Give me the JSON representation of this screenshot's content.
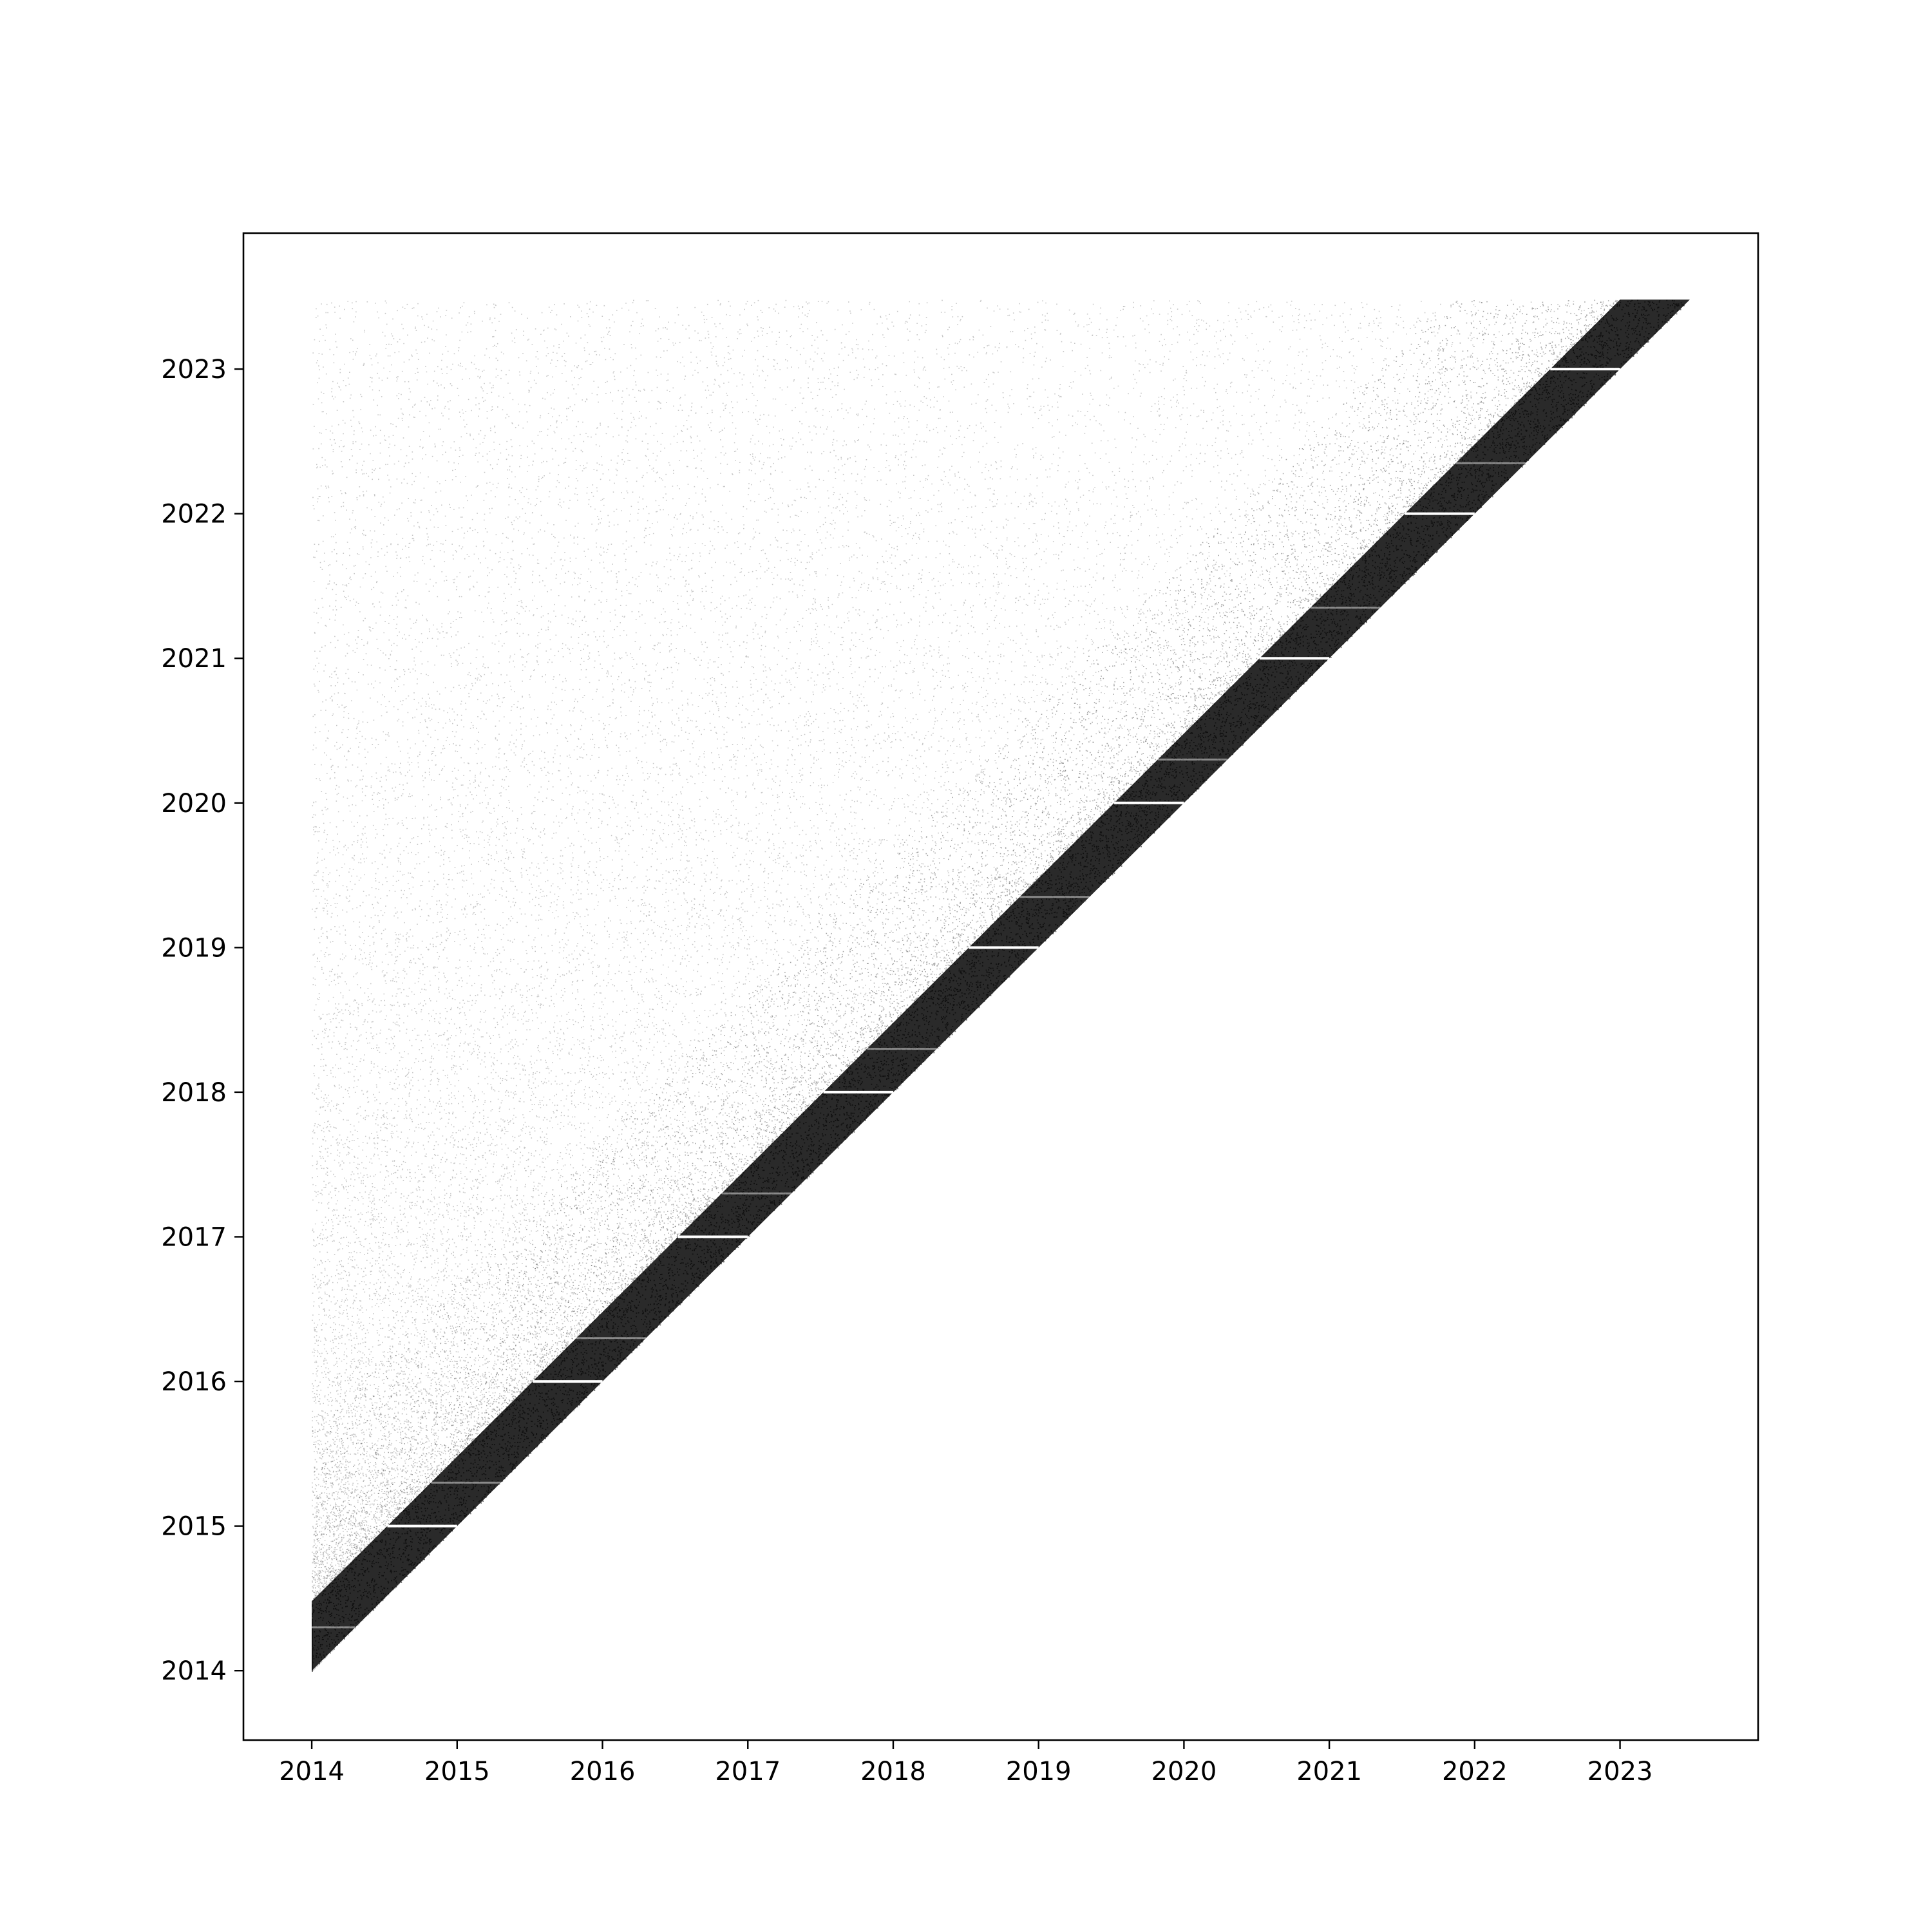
{
  "chart_data": {
    "type": "scatter",
    "title": "",
    "xlabel": "",
    "ylabel": "",
    "x_axis": {
      "scale": "time (year)",
      "range": [
        2013.53,
        2023.95
      ],
      "ticks": [
        "2014",
        "2015",
        "2016",
        "2017",
        "2018",
        "2019",
        "2020",
        "2021",
        "2022",
        "2023"
      ]
    },
    "y_axis": {
      "scale": "time (year)",
      "range": [
        2013.52,
        2023.94
      ],
      "ticks": [
        "2014",
        "2015",
        "2016",
        "2017",
        "2018",
        "2019",
        "2020",
        "2021",
        "2022",
        "2023"
      ]
    },
    "grid": false,
    "legend": "none",
    "point_color": "#000000",
    "description_of_density": {
      "data_start": 2014.0,
      "data_end": 2023.48,
      "dense_band_above_diagonal_years": 0.48,
      "sparse_region": "all points with x <= y up to y = 2023.48",
      "gap_lines_y": [
        2015.0,
        2016.0,
        2017.0,
        2018.0,
        2019.0,
        2020.0,
        2021.0,
        2022.0,
        2023.0
      ],
      "notes_y_faint": [
        2014.3,
        2015.3,
        2016.3,
        2017.3,
        2018.3,
        2019.35,
        2020.3,
        2021.35,
        2022.35
      ]
    }
  }
}
